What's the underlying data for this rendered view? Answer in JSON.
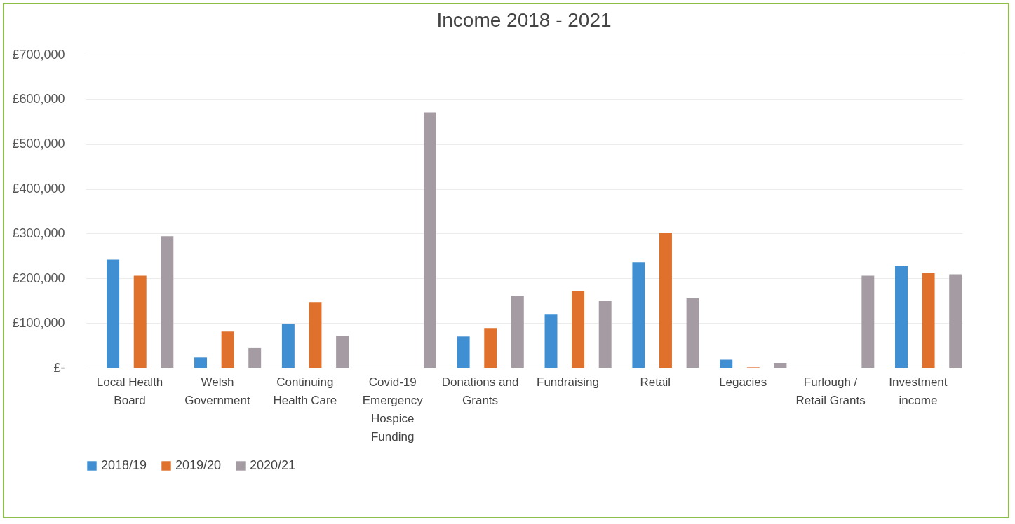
{
  "chart_data": {
    "type": "bar",
    "title": "Income 2018 - 2021",
    "categories": [
      "Local Health Board",
      "Welsh Government",
      "Continuing Health Care",
      "Covid-19 Emergency Hospice Funding",
      "Donations and Grants",
      "Fundraising",
      "Retail",
      "Legacies",
      "Furlough / Retail Grants",
      "Investment income"
    ],
    "series": [
      {
        "name": "2018/19",
        "color": "#3f8fd2",
        "values": [
          242000,
          23000,
          98000,
          null,
          70000,
          120000,
          236000,
          18000,
          null,
          227000
        ]
      },
      {
        "name": "2019/20",
        "color": "#e0712c",
        "values": [
          206000,
          81000,
          147000,
          null,
          89000,
          171000,
          302000,
          1000,
          null,
          212000
        ]
      },
      {
        "name": "2020/21",
        "color": "#a59ca3",
        "values": [
          294000,
          44000,
          71000,
          571000,
          161000,
          150000,
          155000,
          11000,
          206000,
          209000
        ]
      }
    ],
    "ylim": [
      0,
      700000
    ],
    "yticks": [
      {
        "value": 0,
        "label": "£-"
      },
      {
        "value": 100000,
        "label": "£100,000"
      },
      {
        "value": 200000,
        "label": "£200,000"
      },
      {
        "value": 300000,
        "label": "£300,000"
      },
      {
        "value": 400000,
        "label": "£400,000"
      },
      {
        "value": 500000,
        "label": "£500,000"
      },
      {
        "value": 600000,
        "label": "£600,000"
      },
      {
        "value": 700000,
        "label": "£700,000"
      }
    ],
    "grid": "y",
    "legend": "bottom"
  }
}
